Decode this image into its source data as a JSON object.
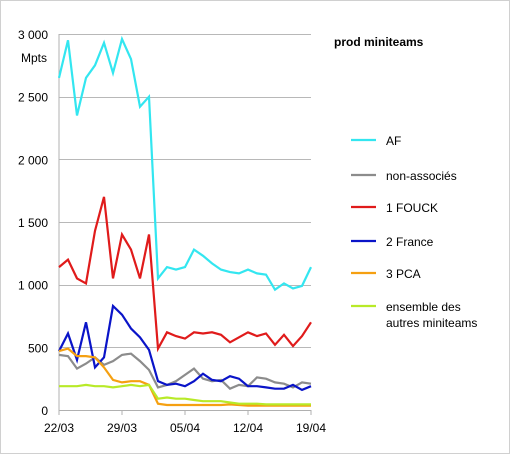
{
  "chart_data": {
    "type": "line",
    "title": "prod miniteams",
    "ylabel": "Mpts",
    "ylim": [
      0,
      3000
    ],
    "yticks": [
      0,
      500,
      1000,
      1500,
      2000,
      2500,
      3000
    ],
    "ytick_labels": [
      "0",
      "500",
      "1 000",
      "1 500",
      "2 000",
      "2 500",
      "3 000"
    ],
    "xlim": [
      0,
      28
    ],
    "xticks": [
      0,
      7,
      14,
      21,
      28
    ],
    "xtick_labels": [
      "22/03",
      "29/03",
      "05/04",
      "12/04",
      "19/04"
    ],
    "grid": "horizontal",
    "legend_position": "right",
    "series": [
      {
        "name": "AF",
        "color": "#33e6f0",
        "values": [
          2650,
          2950,
          2350,
          2650,
          2750,
          2930,
          2690,
          2960,
          2800,
          2420,
          2500,
          1050,
          1140,
          1120,
          1140,
          1280,
          1230,
          1170,
          1120,
          1100,
          1090,
          1120,
          1090,
          1080,
          960,
          1010,
          970,
          990,
          1140
        ]
      },
      {
        "name": "non-associés",
        "color": "#8c8c8c",
        "values": [
          440,
          430,
          330,
          370,
          420,
          360,
          390,
          440,
          450,
          390,
          320,
          180,
          200,
          230,
          280,
          330,
          250,
          230,
          240,
          170,
          200,
          190,
          260,
          250,
          220,
          210,
          180,
          220,
          210
        ]
      },
      {
        "name": "1 FOUCK",
        "color": "#e01b1b",
        "values": [
          1140,
          1200,
          1050,
          1010,
          1430,
          1700,
          1050,
          1400,
          1280,
          1050,
          1400,
          490,
          620,
          590,
          570,
          620,
          610,
          620,
          600,
          540,
          580,
          620,
          590,
          610,
          520,
          600,
          510,
          590,
          700
        ]
      },
      {
        "name": "2 France",
        "color": "#0a14c8",
        "values": [
          470,
          610,
          400,
          700,
          340,
          420,
          830,
          760,
          650,
          580,
          480,
          230,
          200,
          210,
          190,
          230,
          290,
          240,
          230,
          270,
          250,
          190,
          190,
          180,
          170,
          170,
          200,
          160,
          190
        ]
      },
      {
        "name": "3 PCA",
        "color": "#f5a011",
        "values": [
          470,
          490,
          430,
          430,
          420,
          340,
          240,
          220,
          230,
          230,
          200,
          50,
          40,
          40,
          40,
          40,
          40,
          40,
          40,
          45,
          40,
          35,
          35,
          35,
          35,
          35,
          35,
          35,
          35
        ]
      },
      {
        "name": "ensemble des autres miniteams",
        "legend_lines": [
          "ensemble des",
          "autres miniteams"
        ],
        "color": "#b8ea28",
        "values": [
          190,
          190,
          190,
          200,
          190,
          190,
          180,
          190,
          200,
          190,
          200,
          90,
          100,
          90,
          90,
          80,
          70,
          70,
          70,
          60,
          50,
          50,
          50,
          45,
          45,
          45,
          45,
          45,
          45
        ]
      }
    ]
  }
}
